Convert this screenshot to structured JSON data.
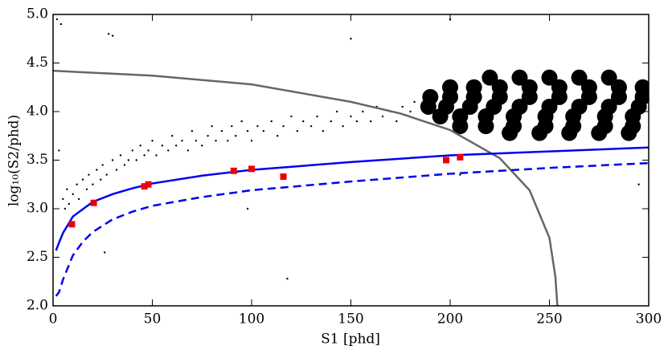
{
  "chart_data": {
    "type": "scatter",
    "xlabel": "S1 [phd]",
    "ylabel": "log₁₀(S2/phd)",
    "xlim": [
      0,
      300
    ],
    "ylim": [
      2.0,
      5.0
    ],
    "xticks": [
      0,
      50,
      100,
      150,
      200,
      250,
      300
    ],
    "yticks": [
      {
        "value": 2,
        "label": "2.0"
      },
      {
        "value": 2.5,
        "label": "2.5"
      },
      {
        "value": 3,
        "label": "3.0"
      },
      {
        "value": 3.5,
        "label": "3.5"
      },
      {
        "value": 4,
        "label": "4.0"
      },
      {
        "value": 4.5,
        "label": "4.5"
      },
      {
        "value": 5,
        "label": "5.0"
      }
    ],
    "series": [
      {
        "kind": "scatter",
        "color": "#000000",
        "marker_size": 1.2,
        "x": [
          2,
          4,
          3,
          5,
          6,
          7,
          8,
          10,
          12,
          13,
          15,
          17,
          18,
          20,
          22,
          24,
          25,
          27,
          28,
          30,
          32,
          34,
          36,
          38,
          40,
          42,
          44,
          46,
          48,
          50,
          52,
          55,
          58,
          60,
          62,
          65,
          68,
          70,
          72,
          75,
          78,
          80,
          82,
          85,
          88,
          90,
          92,
          95,
          98,
          100,
          103,
          106,
          110,
          113,
          116,
          120,
          123,
          126,
          130,
          133,
          136,
          140,
          143,
          146,
          150,
          153,
          156,
          160,
          163,
          166,
          170,
          173,
          176,
          180,
          182,
          26,
          98,
          118,
          150,
          200,
          295,
          205,
          30
        ],
        "values": [
          4.95,
          4.9,
          3.6,
          3.1,
          3.0,
          3.2,
          3.05,
          3.15,
          3.25,
          3.1,
          3.3,
          3.2,
          3.35,
          3.25,
          3.4,
          3.3,
          3.45,
          3.35,
          4.8,
          3.5,
          3.4,
          3.55,
          3.45,
          3.5,
          3.6,
          3.5,
          3.65,
          3.55,
          3.6,
          3.7,
          3.55,
          3.65,
          3.6,
          3.75,
          3.65,
          3.7,
          3.6,
          3.8,
          3.7,
          3.65,
          3.75,
          3.85,
          3.7,
          3.8,
          3.7,
          3.85,
          3.75,
          3.9,
          3.8,
          3.7,
          3.85,
          3.8,
          3.9,
          3.75,
          3.85,
          3.95,
          3.8,
          3.9,
          3.85,
          3.95,
          3.8,
          3.9,
          4.0,
          3.85,
          3.95,
          3.9,
          4.0,
          3.9,
          4.05,
          3.95,
          4.0,
          3.9,
          4.05,
          4.0,
          4.1,
          2.55,
          3.0,
          2.28,
          4.75,
          4.95,
          3.25,
          3.35,
          4.78
        ]
      },
      {
        "kind": "scatter",
        "color": "#000000",
        "marker_size": 10,
        "x": [
          220,
          235,
          250,
          265,
          280,
          200,
          212,
          225,
          240,
          255,
          270,
          285,
          297,
          190,
          200,
          212,
          225,
          240,
          255,
          270,
          285,
          297,
          189,
          198,
          210,
          222,
          235,
          250,
          265,
          280,
          295,
          195,
          205,
          218,
          232,
          248,
          262,
          278,
          292,
          205,
          218,
          232,
          248,
          262,
          278,
          292,
          230,
          245,
          260,
          275,
          290
        ],
        "values": [
          4.35,
          4.35,
          4.35,
          4.35,
          4.35,
          4.25,
          4.25,
          4.25,
          4.25,
          4.25,
          4.25,
          4.25,
          4.25,
          4.15,
          4.15,
          4.15,
          4.15,
          4.15,
          4.15,
          4.15,
          4.15,
          4.15,
          4.05,
          4.05,
          4.05,
          4.05,
          4.05,
          4.05,
          4.05,
          4.05,
          4.05,
          3.95,
          3.95,
          3.95,
          3.95,
          3.95,
          3.95,
          3.95,
          3.95,
          3.85,
          3.85,
          3.85,
          3.85,
          3.85,
          3.85,
          3.85,
          3.78,
          3.78,
          3.78,
          3.78,
          3.78
        ]
      },
      {
        "kind": "line",
        "color": "#666666",
        "dash": false,
        "x": [
          0,
          50,
          100,
          150,
          175,
          200,
          225,
          240,
          250,
          253,
          254
        ],
        "values": [
          4.42,
          4.37,
          4.28,
          4.1,
          3.98,
          3.81,
          3.52,
          3.19,
          2.7,
          2.3,
          2.0
        ]
      },
      {
        "kind": "line",
        "color": "#0000ee",
        "dash": false,
        "x": [
          1.5,
          3,
          5,
          10,
          20,
          30,
          40,
          50,
          75,
          100,
          150,
          200,
          250,
          300
        ],
        "values": [
          2.57,
          2.65,
          2.75,
          2.92,
          3.07,
          3.15,
          3.21,
          3.26,
          3.34,
          3.4,
          3.48,
          3.55,
          3.59,
          3.63
        ]
      },
      {
        "kind": "line",
        "color": "#0000ee",
        "dash": true,
        "x": [
          1.5,
          3,
          5,
          10,
          15,
          20,
          30,
          40,
          50,
          75,
          100,
          150,
          200,
          250,
          300
        ],
        "values": [
          2.1,
          2.14,
          2.27,
          2.52,
          2.66,
          2.76,
          2.89,
          2.97,
          3.03,
          3.12,
          3.19,
          3.28,
          3.36,
          3.42,
          3.47
        ]
      },
      {
        "kind": "square",
        "color": "#ee0000",
        "marker_size": 8,
        "x": [
          9.5,
          20.5,
          46,
          48,
          91,
          100,
          116,
          198,
          205
        ],
        "values": [
          2.84,
          3.06,
          3.23,
          3.25,
          3.39,
          3.41,
          3.33,
          3.5,
          3.53
        ]
      }
    ]
  }
}
